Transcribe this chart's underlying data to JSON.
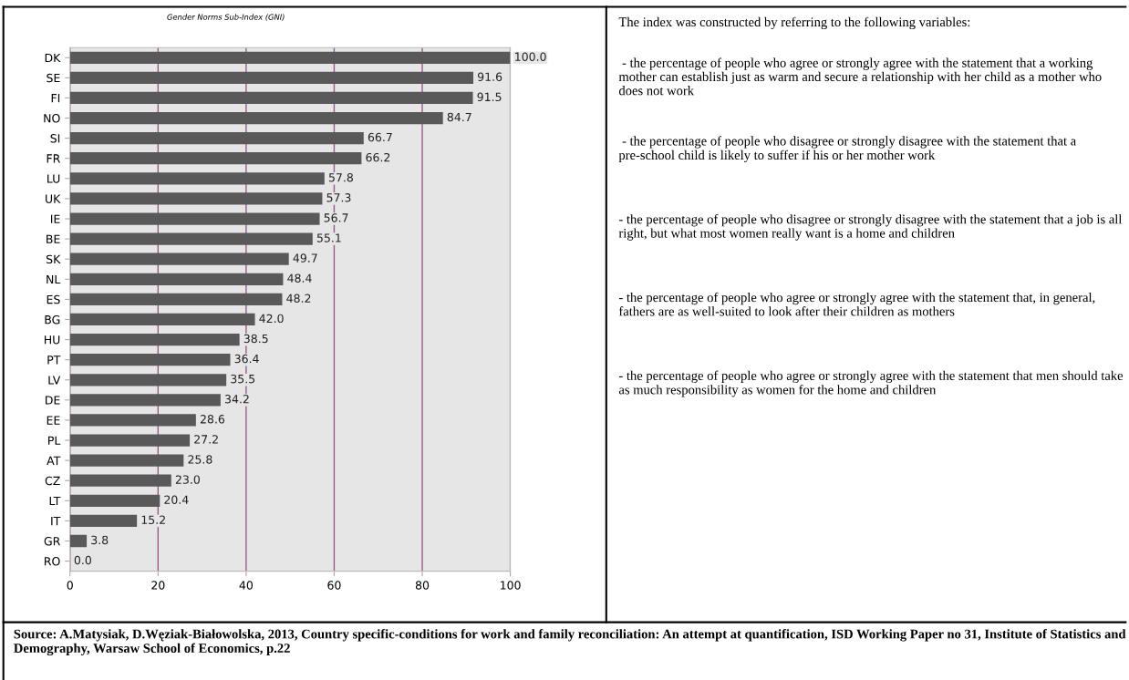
{
  "chart_data": {
    "type": "bar",
    "orientation": "horizontal",
    "title": "Gender Norms Sub-Index (GNI)",
    "categories": [
      "DK",
      "SE",
      "FI",
      "NO",
      "SI",
      "FR",
      "LU",
      "UK",
      "IE",
      "BE",
      "SK",
      "NL",
      "ES",
      "BG",
      "HU",
      "PT",
      "LV",
      "DE",
      "EE",
      "PL",
      "AT",
      "CZ",
      "LT",
      "IT",
      "GR",
      "RO"
    ],
    "values": [
      100.0,
      91.6,
      91.5,
      84.7,
      66.7,
      66.2,
      57.8,
      57.3,
      56.7,
      55.1,
      49.7,
      48.4,
      48.2,
      42.0,
      38.5,
      36.4,
      35.5,
      34.2,
      28.6,
      27.2,
      25.8,
      23.0,
      20.4,
      15.2,
      3.8,
      0.0
    ],
    "color": "#595959",
    "grid": "x",
    "value_labels": [
      "100.0",
      "91.6",
      "91.5",
      "84.7",
      "66.7",
      "66.2",
      "57.8",
      "57.3",
      "56.7",
      "55.1",
      "49.7",
      "48.4",
      "48.2",
      "42.0",
      "38.5",
      "36.4",
      "35.5",
      "34.2",
      "28.6",
      "27.2",
      "25.8",
      "23.0",
      "20.4",
      "15.2",
      "3.8",
      "0.0"
    ],
    "xlim": [
      0,
      100
    ],
    "xticks": [
      0,
      20,
      40,
      60,
      80,
      100
    ],
    "annotations": [
      "The index was constructed by referring to the following variables:",
      " - the percentage of people who agree or strongly agree with the statement that a working mother can establish just as warm and secure a relationship with her child as a mother who does not work",
      " - the percentage of people who disagree or strongly disagree with the statement that a pre-school child is likely to suffer if his or her mother work",
      "- the percentage of people who disagree or strongly disagree with the statement that a job is all right, but what most women really want is a home and children",
      "- the percentage of people who agree or strongly agree with the statement that, in general, fathers are as well-suited to look after their children as mothers",
      "- the percentage of people who agree or strongly agree with the statement that men should take as much responsibility as women for the home and children",
      "Source: A.Matysiak, D.Węziak-Białowolska, 2013, Country specific-conditions for work and family reconciliation: An attempt at quantification, ISD Working Paper no 31, Institute of Statistics and Demography, Warsaw School of Economics, p.22"
    ]
  }
}
